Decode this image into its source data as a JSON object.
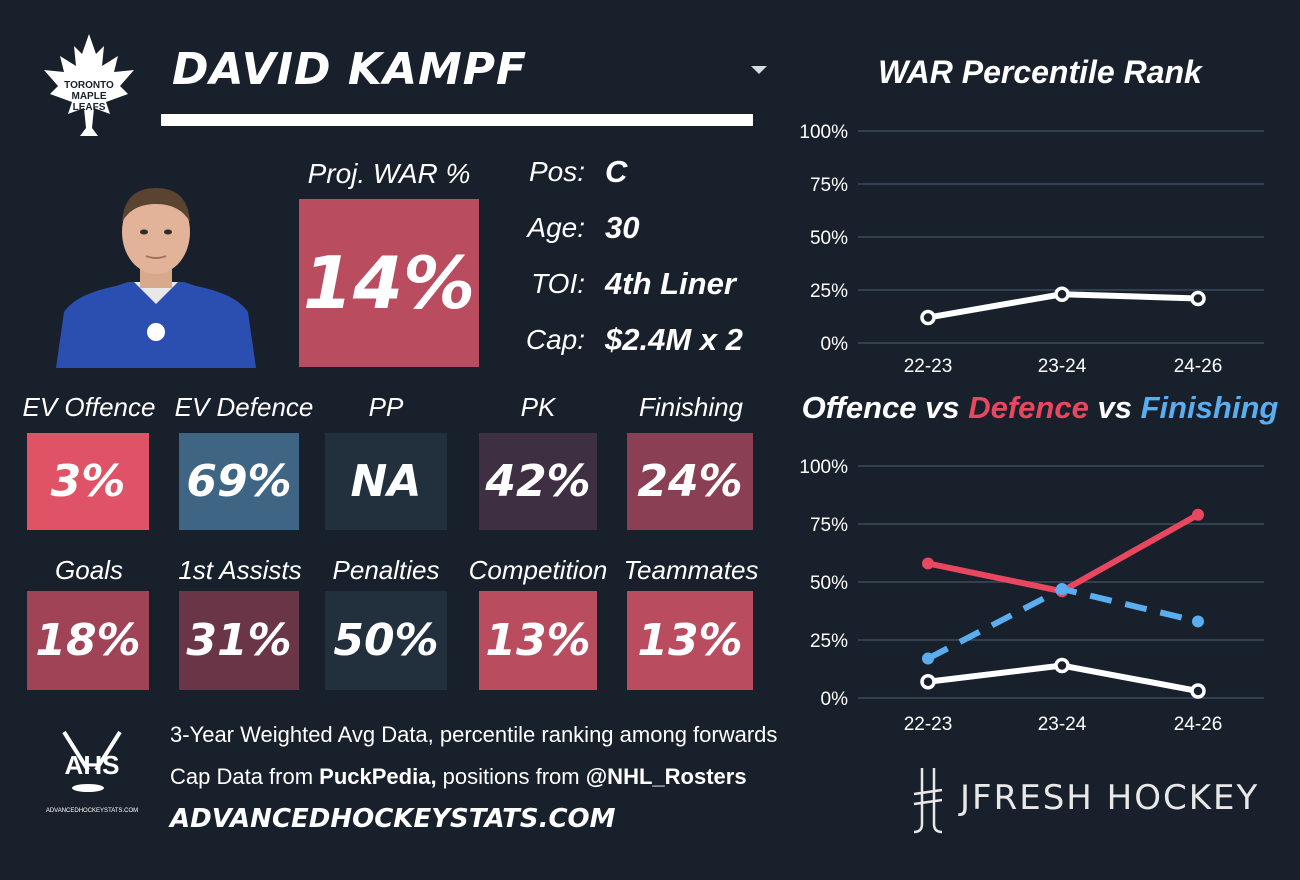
{
  "header": {
    "player_name": "DAVID KAMPF",
    "team_logo_text": [
      "TORONTO",
      "MAPLE",
      "LEAFS"
    ]
  },
  "projection": {
    "label": "Proj. WAR %",
    "value": "14%",
    "color": "#b94c5f"
  },
  "info": [
    {
      "label": "Pos:",
      "value": "C"
    },
    {
      "label": "Age:",
      "value": "30"
    },
    {
      "label": "TOI:",
      "value": "4th Liner"
    },
    {
      "label": "Cap:",
      "value": "$2.4M x 2"
    }
  ],
  "tiles_row1": [
    {
      "label": "EV Offence",
      "value": "3%",
      "color": "#e05265"
    },
    {
      "label": "EV Defence",
      "value": "69%",
      "color": "#3e6584"
    },
    {
      "label": "PP",
      "value": "NA",
      "color": "#22303e"
    },
    {
      "label": "PK",
      "value": "42%",
      "color": "#3e2f42"
    },
    {
      "label": "Finishing",
      "value": "24%",
      "color": "#8a3f55"
    }
  ],
  "tiles_row2": [
    {
      "label": "Goals",
      "value": "18%",
      "color": "#a04357"
    },
    {
      "label": "1st Assists",
      "value": "31%",
      "color": "#6b3548"
    },
    {
      "label": "Penalties",
      "value": "50%",
      "color": "#22303e"
    },
    {
      "label": "Competition",
      "value": "13%",
      "color": "#b94c5f"
    },
    {
      "label": "Teammates",
      "value": "13%",
      "color": "#b94c5f"
    }
  ],
  "footer": {
    "line1": "3-Year Weighted Avg Data, percentile ranking among forwards",
    "line2_prefix": "Cap Data from ",
    "line2_source1": "PuckPedia,",
    "line2_middle": " positions from ",
    "line2_source2": "@NHL_Rosters",
    "site": "ADVANCEDHOCKEYSTATS.COM",
    "ahs_logo_text": "AHS",
    "ahs_logo_subtext": "ADVANCEDHOCKEYSTATS.COM",
    "brand": "JFRESH HOCKEY"
  },
  "chart_titles": {
    "war": "WAR Percentile Rank",
    "ovd_part1": "Offence",
    "ovd_vs1": " vs ",
    "ovd_part2": "Defence",
    "ovd_vs2": " vs ",
    "ovd_part3": "Finishing"
  },
  "chart_data": [
    {
      "type": "line",
      "title": "WAR Percentile Rank",
      "categories": [
        "22-23",
        "23-24",
        "24-26"
      ],
      "yticks": [
        "0%",
        "25%",
        "50%",
        "75%",
        "100%"
      ],
      "ylim": [
        0,
        100
      ],
      "series": [
        {
          "values": [
            12,
            23,
            21
          ],
          "color": "#ffffff",
          "dash": false
        }
      ]
    },
    {
      "type": "line",
      "title": "Offence vs Defence vs Finishing",
      "categories": [
        "22-23",
        "23-24",
        "24-26"
      ],
      "yticks": [
        "0%",
        "25%",
        "50%",
        "75%",
        "100%"
      ],
      "ylim": [
        0,
        100
      ],
      "series": [
        {
          "name": "Offence",
          "values": [
            7,
            14,
            3
          ],
          "color": "#ffffff",
          "dash": false
        },
        {
          "name": "Defence",
          "values": [
            58,
            46,
            79
          ],
          "color": "#e8475f",
          "dash": false
        },
        {
          "name": "Finishing",
          "values": [
            17,
            47,
            33
          ],
          "color": "#5aaef0",
          "dash": true
        }
      ]
    }
  ]
}
